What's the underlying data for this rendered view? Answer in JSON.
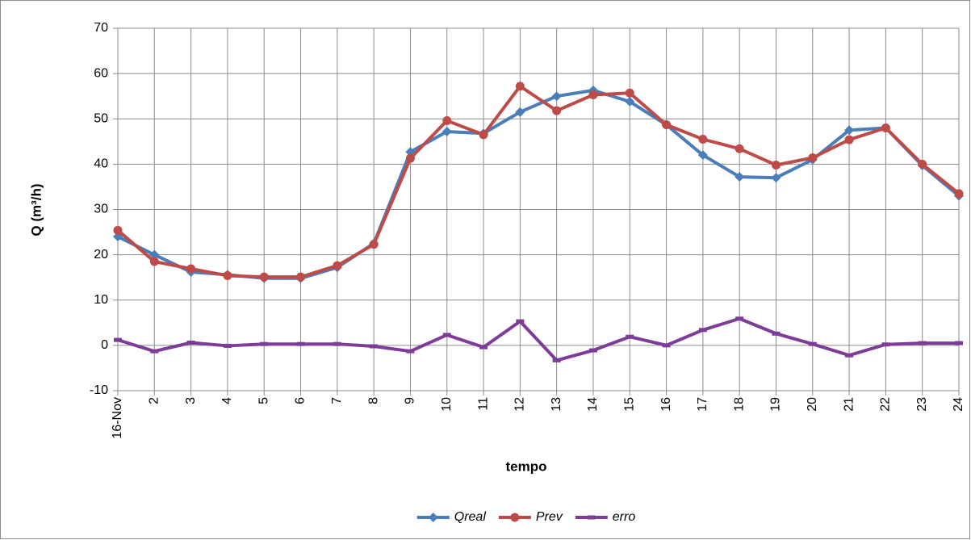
{
  "chart_data": {
    "type": "line",
    "xlabel": "tempo",
    "ylabel": "Q (m³/h)",
    "categories": [
      "16-Nov",
      "2",
      "3",
      "4",
      "5",
      "6",
      "7",
      "8",
      "9",
      "10",
      "11",
      "12",
      "13",
      "14",
      "15",
      "16",
      "17",
      "18",
      "19",
      "20",
      "21",
      "22",
      "23",
      "24"
    ],
    "series": [
      {
        "name": "Qreal",
        "color": "#4a7ebb",
        "marker": "diamond",
        "values": [
          24,
          20,
          16.2,
          15.6,
          14.8,
          14.8,
          17.2,
          22.5,
          42.7,
          47.2,
          46.8,
          51.5,
          55,
          56.3,
          53.8,
          48.7,
          42,
          37.2,
          37,
          41,
          47.5,
          48,
          39.7,
          33
        ]
      },
      {
        "name": "Prev",
        "color": "#be4b48",
        "marker": "circle",
        "values": [
          25.4,
          18.5,
          16.9,
          15.4,
          15.1,
          15.1,
          17.6,
          22.3,
          41.3,
          49.6,
          46.5,
          57.2,
          51.8,
          55.3,
          55.7,
          48.7,
          45.5,
          43.4,
          39.8,
          41.4,
          45.4,
          48,
          40,
          33.5
        ]
      },
      {
        "name": "erro",
        "color": "#7d3c98",
        "marker": "dash",
        "values": [
          1.2,
          -1.3,
          0.6,
          -0.1,
          0.3,
          0.3,
          0.3,
          -0.2,
          -1.3,
          2.3,
          -0.4,
          5.3,
          -3.3,
          -1.1,
          1.9,
          0,
          3.4,
          5.9,
          2.6,
          0.3,
          -2.2,
          0.2,
          0.5,
          0.5
        ]
      }
    ],
    "ylim": [
      -10,
      70
    ],
    "yticks": [
      -10,
      0,
      10,
      20,
      30,
      40,
      50,
      60,
      70
    ],
    "grid": true,
    "legend": "bottom"
  }
}
